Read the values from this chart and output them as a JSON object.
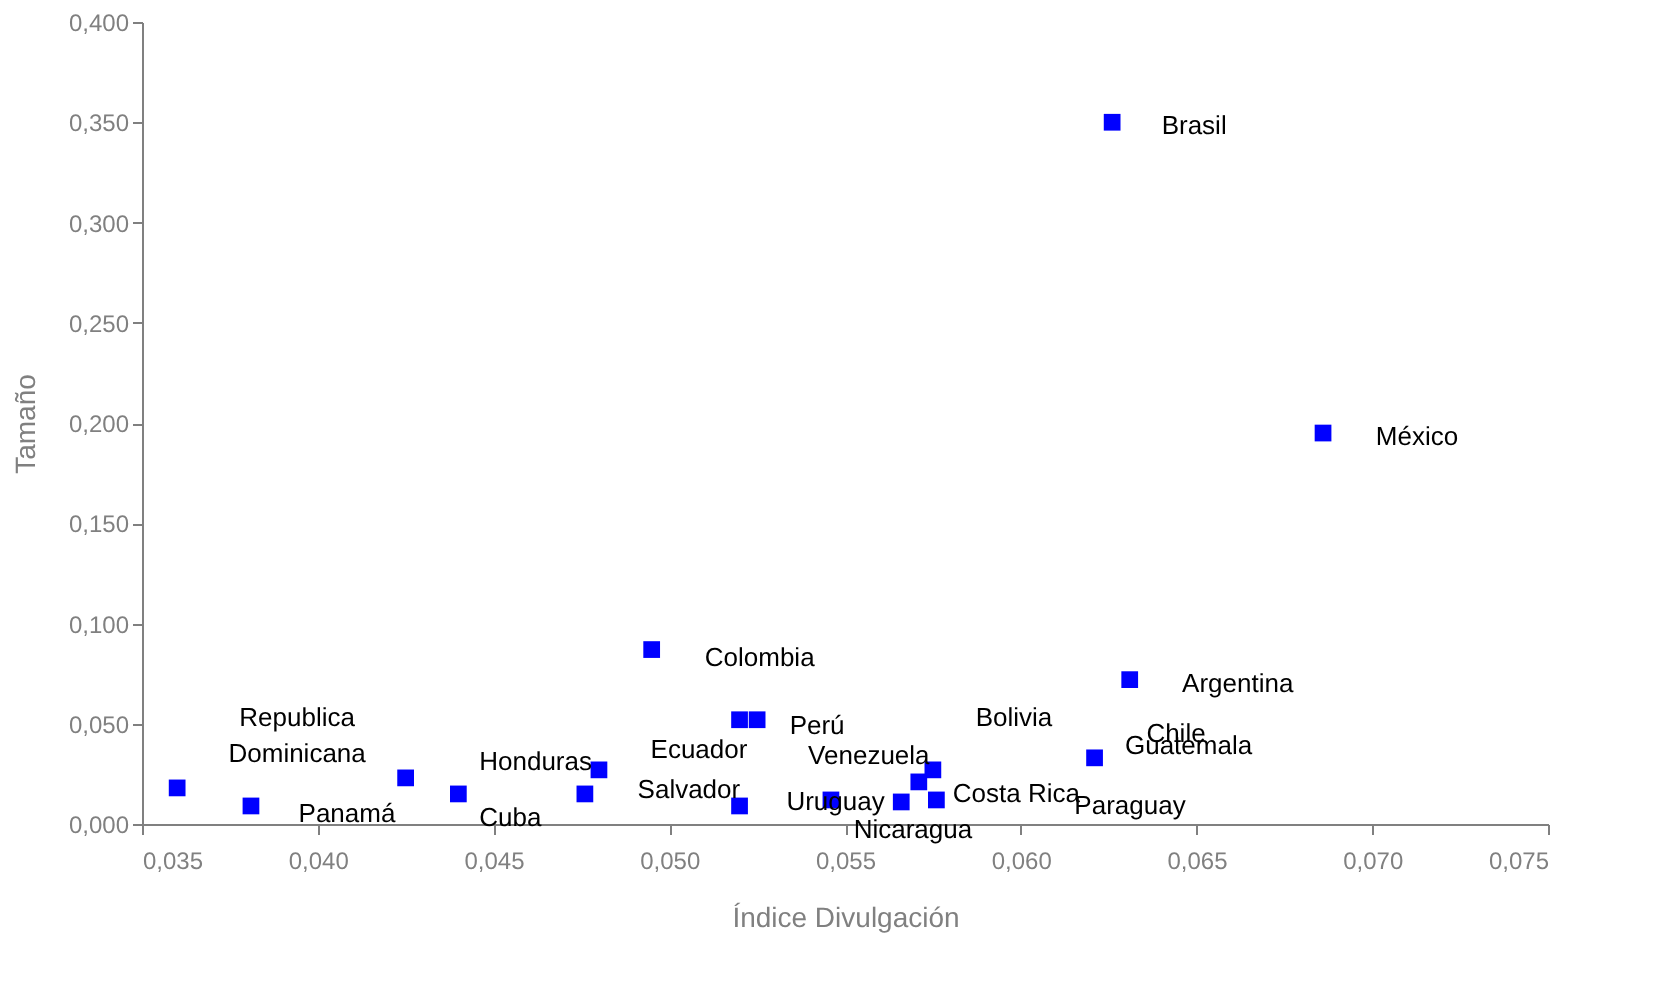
{
  "chart_data": {
    "type": "scatter",
    "xlabel": "Índice Divulgación",
    "ylabel": "Tamaño",
    "marker": "square",
    "grid": false,
    "xlim": [
      0.035,
      0.075
    ],
    "ylim": [
      0,
      0.4
    ],
    "xticks": [
      {
        "value": 0.035,
        "label": "0,035"
      },
      {
        "value": 0.04,
        "label": "0,040"
      },
      {
        "value": 0.045,
        "label": "0,045"
      },
      {
        "value": 0.05,
        "label": "0,050"
      },
      {
        "value": 0.055,
        "label": "0,055"
      },
      {
        "value": 0.06,
        "label": "0,060"
      },
      {
        "value": 0.065,
        "label": "0,065"
      },
      {
        "value": 0.07,
        "label": "0,070"
      },
      {
        "value": 0.075,
        "label": "0,075"
      }
    ],
    "yticks": [
      {
        "value": 0,
        "label": "0,000"
      },
      {
        "value": 0.05,
        "label": "0,050"
      },
      {
        "value": 0.1,
        "label": "0,100"
      },
      {
        "value": 0.15,
        "label": "0,150"
      },
      {
        "value": 0.2,
        "label": "0,200"
      },
      {
        "value": 0.25,
        "label": "0,250"
      },
      {
        "value": 0.3,
        "label": "0,300"
      },
      {
        "value": 0.35,
        "label": "0,350"
      },
      {
        "value": 0.4,
        "label": "0,400"
      }
    ],
    "x": [
      0.036,
      0.0381,
      0.0425,
      0.044,
      0.0476,
      0.048,
      0.0495,
      0.052,
      0.0525,
      0.052,
      0.0546,
      0.0566,
      0.0571,
      0.0575,
      0.0576,
      0.0621,
      0.0631,
      0.0626,
      0.0686
    ],
    "series": [
      {
        "color": "#0000ff",
        "values": [
          0.018,
          0.009,
          0.023,
          0.015,
          0.015,
          0.027,
          0.087,
          0.052,
          0.052,
          0.009,
          0.012,
          0.011,
          0.021,
          0.027,
          0.012,
          0.033,
          0.072,
          0.35,
          0.195
        ]
      }
    ],
    "annotations": [
      {
        "text": "Republica\nDominicana",
        "x": 0.036,
        "y": 0.018
      },
      {
        "text": "Panamá",
        "x": 0.0381,
        "y": 0.009
      },
      {
        "text": "Honduras",
        "x": 0.0425,
        "y": 0.023
      },
      {
        "text": "Cuba",
        "x": 0.044,
        "y": 0.015
      },
      {
        "text": "Salvador",
        "x": 0.0476,
        "y": 0.015
      },
      {
        "text": "Ecuador",
        "x": 0.048,
        "y": 0.027
      },
      {
        "text": "Colombia",
        "x": 0.0495,
        "y": 0.087
      },
      "Bolivia",
      {
        "text": "Perú",
        "x": 0.0525,
        "y": 0.052
      },
      {
        "text": "Uruguay",
        "x": 0.052,
        "y": 0.009
      },
      {
        "text": "Nicaragua",
        "x": 0.0546,
        "y": 0.012
      },
      "Paraguay",
      {
        "text": "Venezuela",
        "x": 0.0571,
        "y": 0.021
      },
      "Chile",
      {
        "text": "Costa Rica",
        "x": 0.0576,
        "y": 0.012
      },
      {
        "text": "Guatemala",
        "x": 0.0621,
        "y": 0.033
      },
      {
        "text": "Argentina",
        "x": 0.0631,
        "y": 0.072
      },
      {
        "text": "Brasil",
        "x": 0.0626,
        "y": 0.35
      },
      {
        "text": "México",
        "x": 0.0686,
        "y": 0.195
      }
    ]
  }
}
